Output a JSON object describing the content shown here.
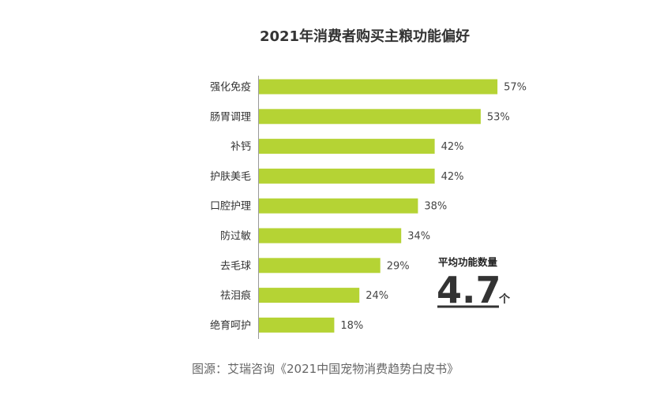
{
  "chart_data": {
    "type": "bar",
    "orientation": "horizontal",
    "title": "2021年消费者购买主粮功能偏好",
    "categories": [
      "强化免疫",
      "肠胃调理",
      "补钙",
      "护肤美毛",
      "口腔护理",
      "防过敏",
      "去毛球",
      "祛泪痕",
      "绝育呵护"
    ],
    "values": [
      57,
      53,
      42,
      42,
      38,
      34,
      29,
      24,
      18
    ],
    "value_labels": [
      "57%",
      "53%",
      "42%",
      "42%",
      "38%",
      "34%",
      "29%",
      "24%",
      "18%"
    ],
    "xlim": [
      0,
      100
    ],
    "grid": false,
    "legend": "none",
    "bar_color": "#b5d334",
    "axis_color": "#999999"
  },
  "annotation": {
    "caption": "平均功能数量",
    "value": "4.7",
    "unit": "个"
  },
  "source": "图源：艾瑞咨询《2021中国宠物消费趋势白皮书》"
}
